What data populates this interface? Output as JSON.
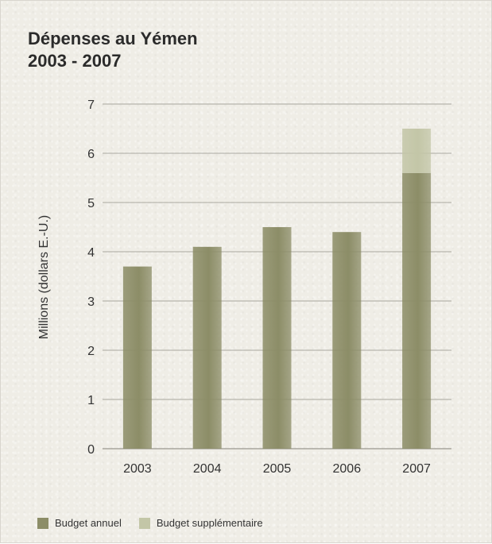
{
  "chart_data": {
    "type": "bar",
    "title_line1": "Dépenses au Yémen",
    "title_line2": "2003 - 2007",
    "ylabel": "Millions (dollars E.-U.)",
    "xlabel": "",
    "categories": [
      "2003",
      "2004",
      "2005",
      "2006",
      "2007"
    ],
    "ylim": [
      0,
      7
    ],
    "yticks": [
      "0",
      "1",
      "2",
      "3",
      "4",
      "5",
      "6",
      "7"
    ],
    "stacked": true,
    "grid": true,
    "legend_position": "bottom-left",
    "series": [
      {
        "name": "Budget annuel",
        "color": "#8c8d67",
        "values": [
          3.7,
          4.1,
          4.5,
          4.4,
          5.6
        ]
      },
      {
        "name": "Budget supplémentaire",
        "color": "#c3c6a7",
        "values": [
          0,
          0,
          0,
          0,
          0.9
        ]
      }
    ]
  }
}
